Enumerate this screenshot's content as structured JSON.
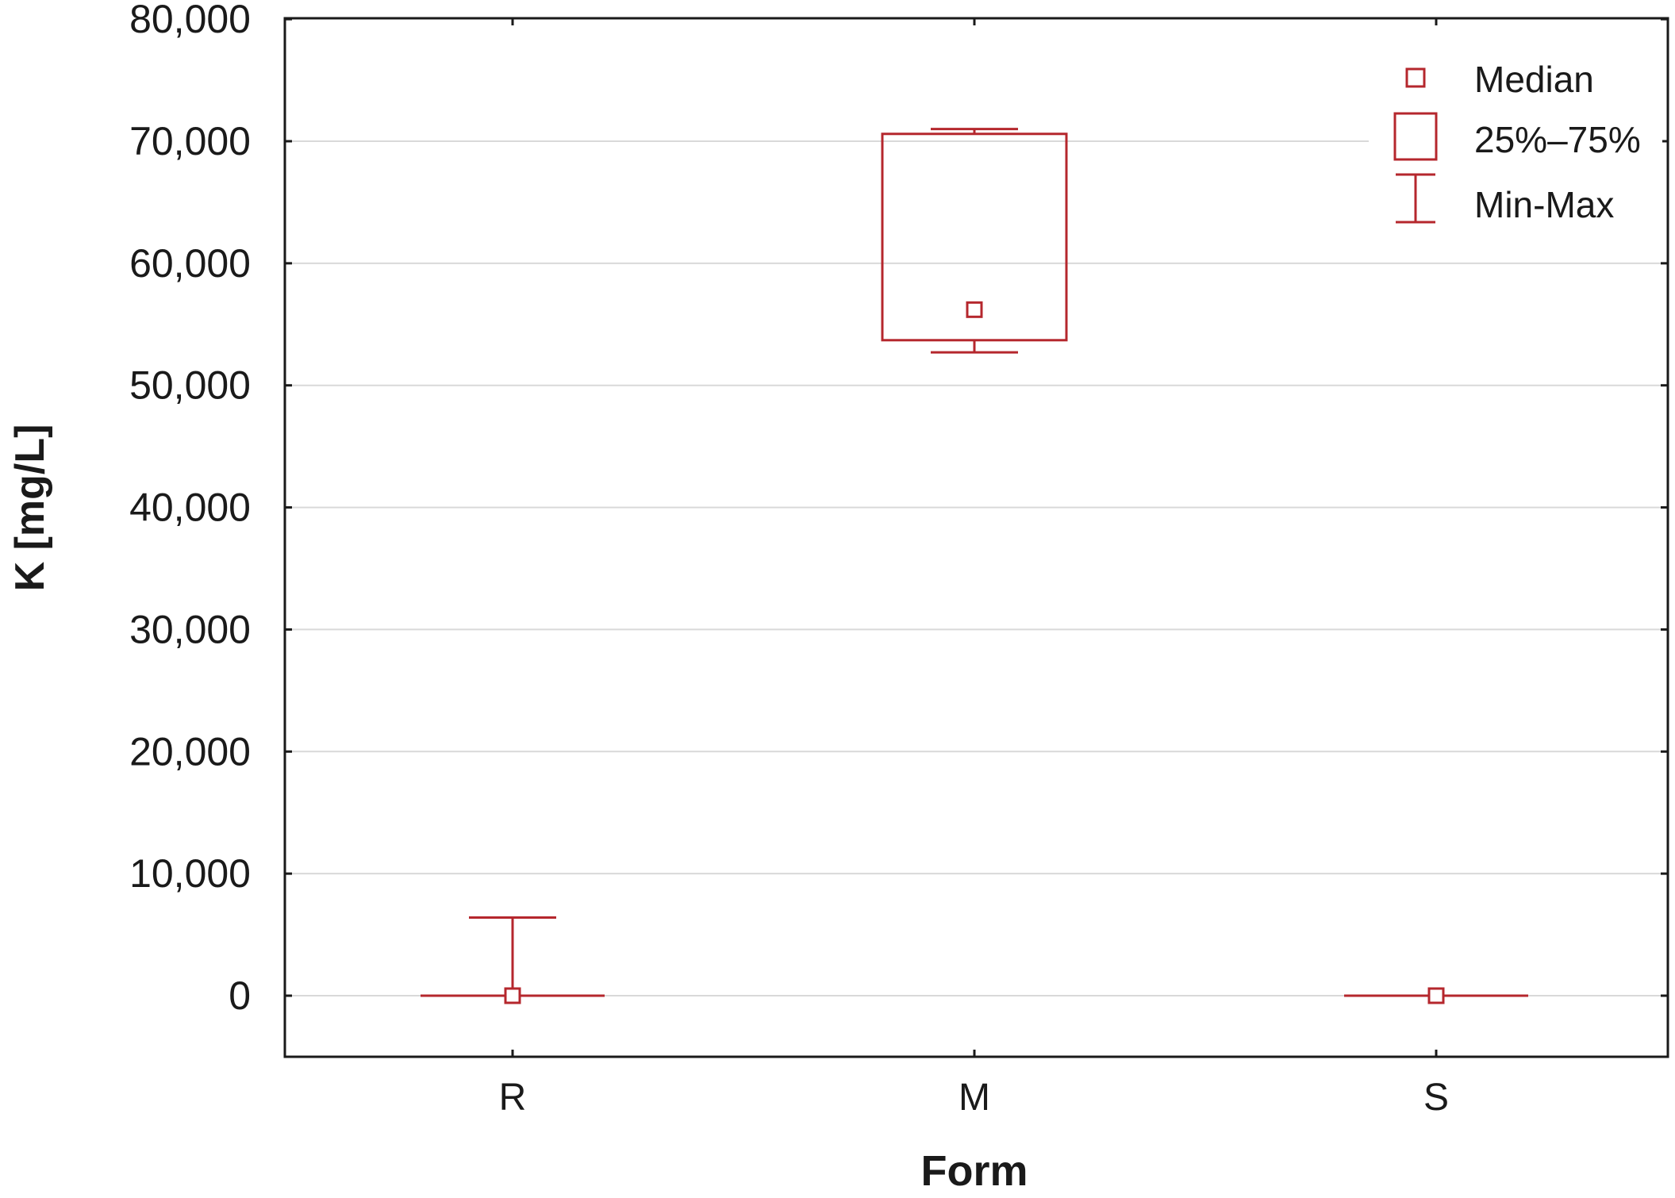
{
  "chart_data": {
    "type": "boxplot",
    "xlabel": "Form",
    "ylabel": "K [mg/L]",
    "categories": [
      "R",
      "M",
      "S"
    ],
    "ylim": [
      -5000,
      80000
    ],
    "yticks": [
      0,
      10000,
      20000,
      30000,
      40000,
      50000,
      60000,
      70000,
      80000
    ],
    "ytick_labels": [
      "0",
      "10,000",
      "20,000",
      "30,000",
      "40,000",
      "50,000",
      "60,000",
      "70,000",
      "80,000"
    ],
    "grid": true,
    "legend_position": "top-right",
    "color": "#b5272d",
    "boxes": [
      {
        "category": "R",
        "min": 0,
        "q1": 0,
        "median": 0,
        "q3": 0,
        "max": 6400
      },
      {
        "category": "M",
        "min": 52700,
        "q1": 53700,
        "median": 56200,
        "q3": 70600,
        "max": 71000
      },
      {
        "category": "S",
        "min": 0,
        "q1": 0,
        "median": 0,
        "q3": 0,
        "max": 0
      }
    ],
    "legend": [
      {
        "symbol": "median",
        "label": "Median"
      },
      {
        "symbol": "box",
        "label": "25%–75%"
      },
      {
        "symbol": "whisker",
        "label": "Min-Max"
      }
    ]
  }
}
